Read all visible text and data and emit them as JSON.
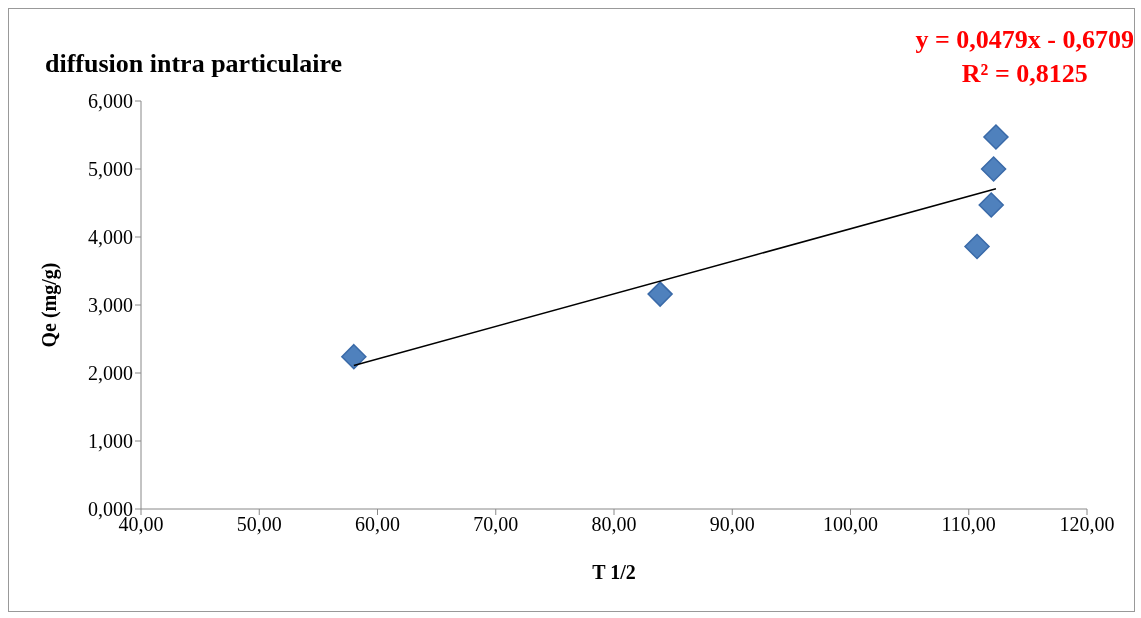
{
  "chart_data": {
    "type": "scatter",
    "title": "diffusion intra particulaire",
    "xlabel": "T 1/2",
    "ylabel": "Qe (mg/g)",
    "annotations": [
      "y = 0,0479x - 0,6709",
      "R² = 0,8125"
    ],
    "xlim": [
      40,
      120
    ],
    "xticks": [
      {
        "value": 40,
        "label": "40,00"
      },
      {
        "value": 50,
        "label": "50,00"
      },
      {
        "value": 60,
        "label": "60,00"
      },
      {
        "value": 70,
        "label": "70,00"
      },
      {
        "value": 80,
        "label": "80,00"
      },
      {
        "value": 90,
        "label": "90,00"
      },
      {
        "value": 100,
        "label": "100,00"
      },
      {
        "value": 110,
        "label": "110,00"
      },
      {
        "value": 120,
        "label": "120,00"
      }
    ],
    "ylim": [
      0,
      6
    ],
    "yticks": [
      {
        "value": 0,
        "label": "0,000"
      },
      {
        "value": 1,
        "label": "1,000"
      },
      {
        "value": 2,
        "label": "2,000"
      },
      {
        "value": 3,
        "label": "3,000"
      },
      {
        "value": 4,
        "label": "4,000"
      },
      {
        "value": 5,
        "label": "5,000"
      },
      {
        "value": 6,
        "label": "6,000"
      }
    ],
    "series": [
      {
        "color": "#4f81bd",
        "marker": "diamond",
        "x": [
          58.0,
          83.9,
          110.7,
          111.9,
          112.1,
          112.3
        ],
        "values": [
          2.24,
          3.16,
          3.86,
          4.47,
          5.0,
          5.47
        ]
      },
      {
        "type": "line",
        "color": "#000000",
        "marker": "none",
        "x": [
          58.0,
          112.3
        ],
        "values": [
          2.11,
          4.71
        ]
      }
    ]
  }
}
